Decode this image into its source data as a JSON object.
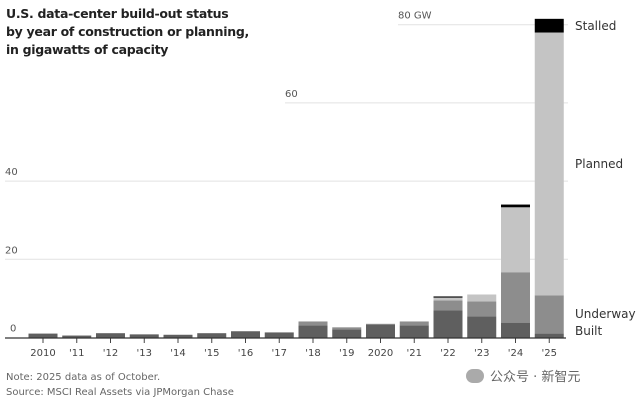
{
  "title_lines": [
    "U.S. data-center build-out status",
    "by year of construction or planning,",
    "in gigawatts of capacity"
  ],
  "notes": [
    "Note: 2025 data as of October.",
    "Source: MSCI Real Assets via JPMorgan Chase"
  ],
  "watermark": "公众号 · 新智元",
  "chart_data": {
    "type": "bar",
    "stacked": true,
    "title": "U.S. data-center build-out status by year of construction or planning, in gigawatts of capacity",
    "categories": [
      "2010",
      "'11",
      "'12",
      "'13",
      "'14",
      "'15",
      "'16",
      "'17",
      "'18",
      "'19",
      "2020",
      "'21",
      "'22",
      "'23",
      "'24",
      "'25"
    ],
    "series": [
      {
        "name": "Built",
        "color": "#5f5f5f",
        "values": [
          1.0,
          0.5,
          1.1,
          0.8,
          0.7,
          1.1,
          1.6,
          1.3,
          3.1,
          2.1,
          3.3,
          3.1,
          6.9,
          5.4,
          3.8,
          1.0
        ]
      },
      {
        "name": "Underway",
        "color": "#8d8d8d",
        "values": [
          0,
          0,
          0,
          0,
          0,
          0,
          0,
          0,
          1.0,
          0.5,
          0.2,
          1.0,
          2.6,
          3.8,
          12.9,
          9.8
        ]
      },
      {
        "name": "Planned",
        "color": "#c4c4c4",
        "values": [
          0,
          0,
          0,
          0,
          0,
          0,
          0,
          0,
          0,
          0,
          0,
          0,
          0.7,
          1.8,
          16.6,
          67.2
        ]
      },
      {
        "name": "Stalled",
        "color": "#000000",
        "values": [
          0,
          0,
          0,
          0,
          0,
          0,
          0,
          0,
          0,
          0,
          0,
          0,
          0.3,
          0,
          0.7,
          3.5
        ]
      }
    ],
    "yticks": [
      {
        "value": 0,
        "label": "0"
      },
      {
        "value": 20,
        "label": "20"
      },
      {
        "value": 40,
        "label": "40"
      },
      {
        "value": 60,
        "label": "60"
      },
      {
        "value": 80,
        "label": "80 GW"
      }
    ],
    "ylim": [
      0,
      82
    ],
    "grid": true,
    "legend": "right, labels aligned to last bar"
  }
}
